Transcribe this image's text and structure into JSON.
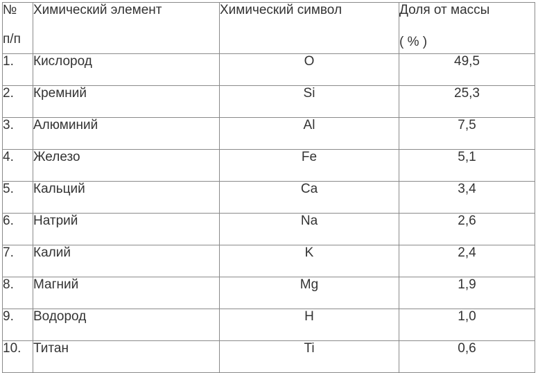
{
  "table": {
    "headers": {
      "num_line1": "№",
      "num_line2": "п/п",
      "element": "Химический элемент",
      "symbol": "Химический символ",
      "share_line1": "Доля от массы",
      "share_line2": "( % )"
    },
    "rows": [
      {
        "num": "1.",
        "name": "Кислород",
        "symbol": "O",
        "percent": "49,5"
      },
      {
        "num": "2.",
        "name": "Кремний",
        "symbol": "Si",
        "percent": "25,3"
      },
      {
        "num": "3.",
        "name": "Алюминий",
        "symbol": "Al",
        "percent": "7,5"
      },
      {
        "num": "4.",
        "name": "Железо",
        "symbol": "Fe",
        "percent": "5,1"
      },
      {
        "num": "5.",
        "name": "Кальций",
        "symbol": "Ca",
        "percent": "3,4"
      },
      {
        "num": "6.",
        "name": "Натрий",
        "symbol": "Na",
        "percent": "2,6"
      },
      {
        "num": "7.",
        "name": "Калий",
        "symbol": "K",
        "percent": "2,4"
      },
      {
        "num": "8.",
        "name": "Магний",
        "symbol": "Mg",
        "percent": "1,9"
      },
      {
        "num": "9.",
        "name": "Водород",
        "symbol": "H",
        "percent": "1,0"
      },
      {
        "num": "10.",
        "name": "Титан",
        "symbol": "Ti",
        "percent": "0,6"
      }
    ]
  }
}
